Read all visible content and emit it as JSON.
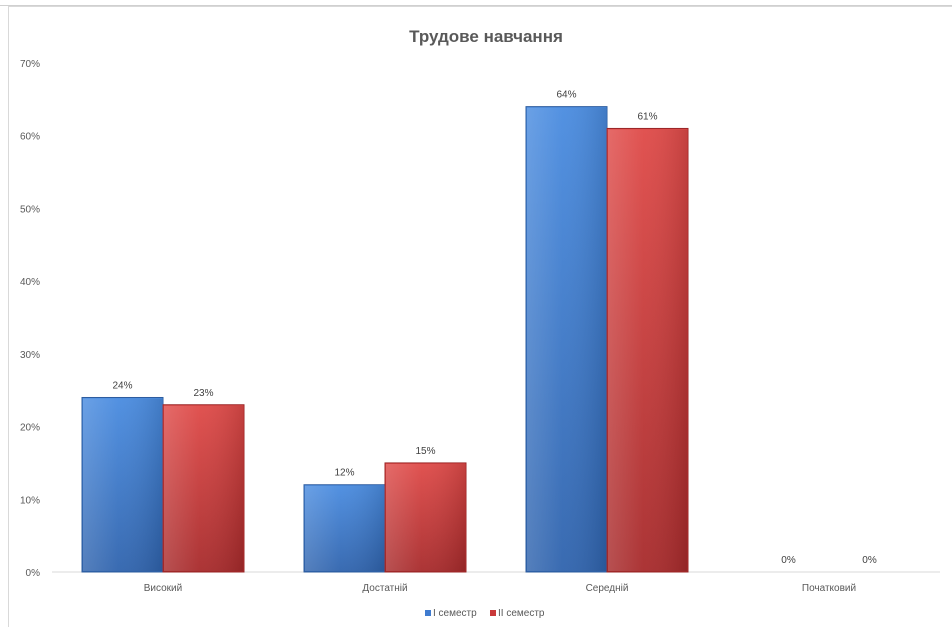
{
  "chart_data": {
    "type": "bar",
    "title": "Трудове навчання",
    "categories": [
      "Високий",
      "Достатній",
      "Середній",
      "Початковий"
    ],
    "series": [
      {
        "name": "I семестр",
        "values": [
          24,
          12,
          64,
          0
        ],
        "labels": [
          "24%",
          "12%",
          "64%",
          "0%"
        ],
        "color": "#3f7bcf"
      },
      {
        "name": "II семестр",
        "values": [
          23,
          15,
          61,
          0
        ],
        "labels": [
          "23%",
          "15%",
          "61%",
          "0%"
        ],
        "color": "#c9393a"
      }
    ],
    "yticks": [
      "0%",
      "10%",
      "20%",
      "30%",
      "40%",
      "50%",
      "60%",
      "70%"
    ],
    "ylim": [
      0,
      70
    ],
    "grid": false,
    "legend": "bottom"
  }
}
